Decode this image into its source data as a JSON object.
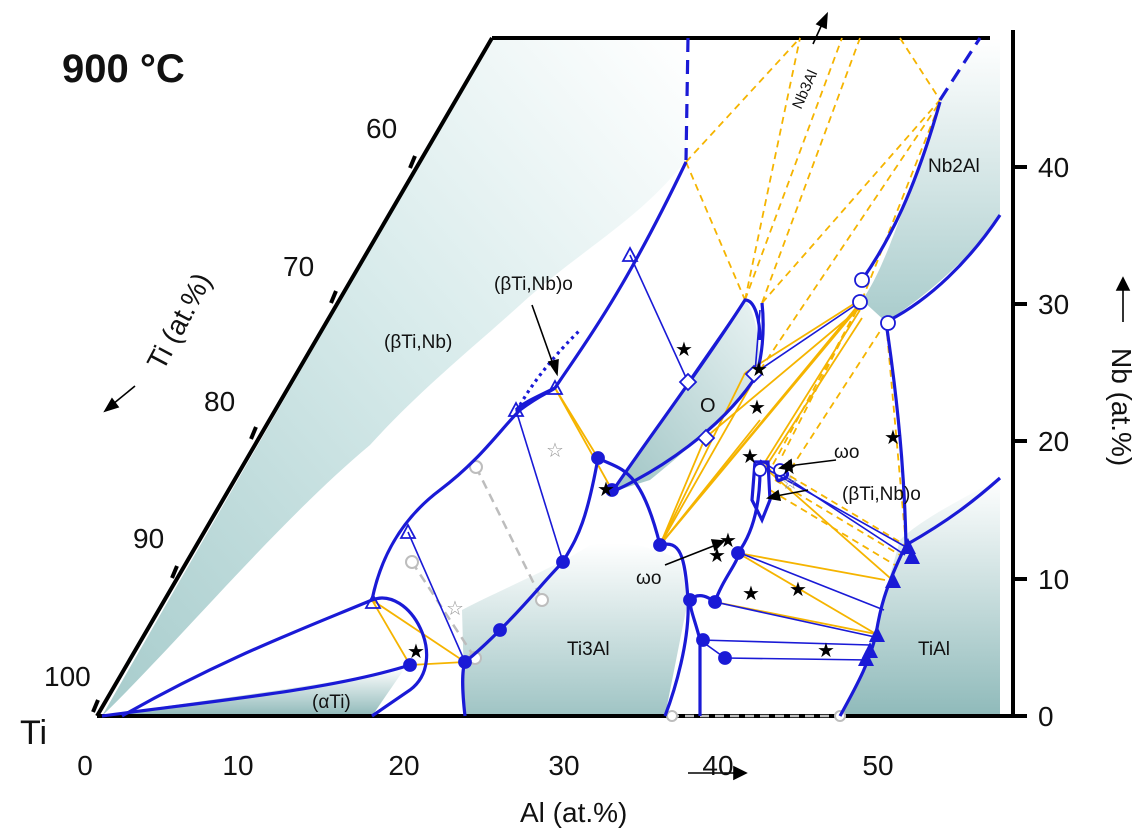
{
  "title": "900 °C",
  "corner_label": "Ti",
  "axes": {
    "al": {
      "label": "Al (at.%)",
      "ticks": [
        "0",
        "10",
        "20",
        "30",
        "40",
        "50"
      ]
    },
    "nb": {
      "label": "Nb (at.%)",
      "ticks": [
        "0",
        "10",
        "20",
        "30",
        "40"
      ]
    },
    "ti": {
      "label": "Ti (at.%)",
      "ticks": [
        "60",
        "70",
        "80",
        "90",
        "100"
      ]
    }
  },
  "phases": {
    "beta": "(βTi,Nb)",
    "beta_o_upper": "(βTi,Nb)o",
    "beta_o_right": "(βTi,Nb)o",
    "omega_upper": "ωo",
    "omega_lower": "ωo",
    "o_phase": "O",
    "ti3al": "Ti3Al",
    "tial": "TiAl",
    "alpha": "(αTi)",
    "nb2al": "Nb2Al",
    "nb3al": "Nb3Al"
  },
  "colors": {
    "boundary": "#1a1ad6",
    "tie_solid": "#f5b400",
    "tie_dashed": "#f5b400",
    "tie_gray": "#bbbbbb",
    "shade_dark": "#9cc3c3",
    "shade_light": "#ffffff"
  }
}
